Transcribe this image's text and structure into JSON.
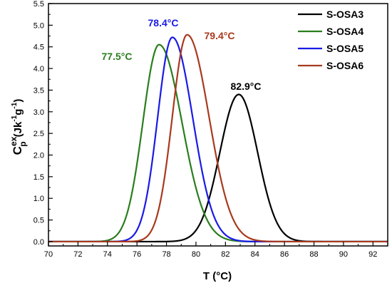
{
  "chart_data": {
    "type": "line",
    "xlabel": "T (°C)",
    "ylabel_main": "C",
    "ylabel_sup": "ex",
    "ylabel_sub": "p",
    "ylabel_unit_open": "(Jk",
    "ylabel_unit_exp1": "-1",
    "ylabel_unit_mid": "g",
    "ylabel_unit_exp2": "-1",
    "ylabel_unit_close": ")",
    "xlim": [
      70,
      93
    ],
    "ylim": [
      -0.1,
      5.5
    ],
    "xticks": [
      "70",
      "72",
      "74",
      "76",
      "78",
      "80",
      "82",
      "84",
      "86",
      "88",
      "90",
      "92"
    ],
    "yticks": [
      "0.0",
      "0.5",
      "1.0",
      "1.5",
      "2.0",
      "2.5",
      "3.0",
      "3.5",
      "4.0",
      "4.5",
      "5.0",
      "5.5"
    ],
    "legend_position": "top-right",
    "grid": false,
    "series": [
      {
        "name": "S-OSA3",
        "color": "#000000",
        "peak_x": 82.9,
        "peak_y": 3.4,
        "sigma_left": 1.28,
        "sigma_right": 1.28,
        "peak_label": "82.9°C"
      },
      {
        "name": "S-OSA4",
        "color": "#2a7d1e",
        "peak_x": 77.5,
        "peak_y": 4.55,
        "sigma_left": 1.1,
        "sigma_right": 1.55,
        "peak_label": "77.5°C"
      },
      {
        "name": "S-OSA5",
        "color": "#1a1ae6",
        "peak_x": 78.4,
        "peak_y": 4.72,
        "sigma_left": 1.0,
        "sigma_right": 1.38,
        "peak_label": "78.4°C"
      },
      {
        "name": "S-OSA6",
        "color": "#a83a1e",
        "peak_x": 79.4,
        "peak_y": 4.78,
        "sigma_left": 1.0,
        "sigma_right": 1.48,
        "peak_label": "79.4°C"
      }
    ]
  }
}
